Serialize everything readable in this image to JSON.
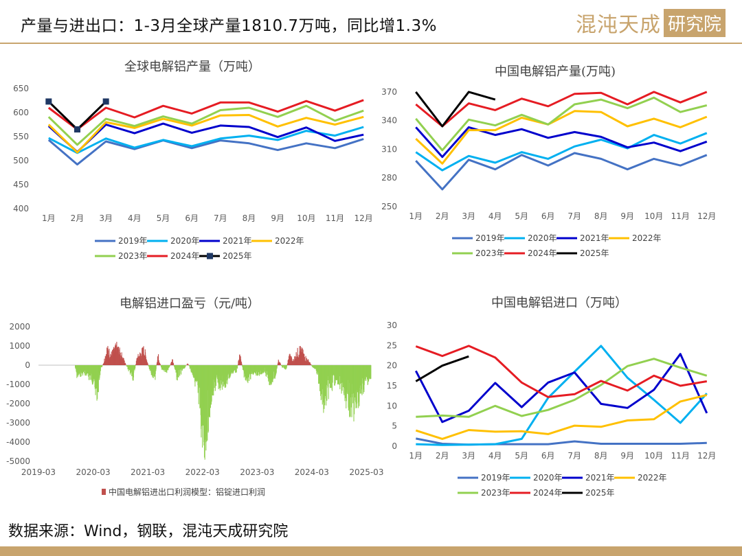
{
  "header": {
    "title": "产量与进出口：1-3月全球产量1810.7万吨，同比增1.3%",
    "logo_text": "混沌天成",
    "logo_box_text": "研究院"
  },
  "footer": {
    "source": "数据来源：Wind，钢联，混沌天成研究院"
  },
  "colors": {
    "2019": "#4472c4",
    "2020": "#00b0f0",
    "2021": "#0000cc",
    "2022": "#ffc000",
    "2023": "#92d050",
    "2024": "#e51c23",
    "2025": "#000000",
    "profit_pos": "#c0504d",
    "profit_neg": "#92d050",
    "brand": "#c8a46d"
  },
  "chart_data": [
    {
      "id": "global",
      "type": "line",
      "title": "全球电解铝产量（万吨）",
      "categories": [
        "1月",
        "2月",
        "3月",
        "4月",
        "5月",
        "6月",
        "7月",
        "8月",
        "9月",
        "10月",
        "11月",
        "12月"
      ],
      "ylim": [
        400,
        650
      ],
      "yticks": [
        400,
        450,
        500,
        550,
        600,
        650
      ],
      "series": [
        {
          "name": "2019年",
          "color": "2019",
          "values": [
            543,
            492,
            540,
            524,
            542,
            526,
            542,
            536,
            522,
            536,
            526,
            545
          ]
        },
        {
          "name": "2020年",
          "color": "2020",
          "values": [
            547,
            516,
            546,
            527,
            543,
            530,
            546,
            552,
            543,
            562,
            552,
            570
          ]
        },
        {
          "name": "2021年",
          "color": "2021",
          "values": [
            572,
            518,
            575,
            557,
            577,
            558,
            573,
            570,
            549,
            569,
            541,
            554
          ]
        },
        {
          "name": "2022年",
          "color": "2022",
          "values": [
            575,
            517,
            580,
            568,
            587,
            573,
            594,
            595,
            571,
            589,
            575,
            591
          ]
        },
        {
          "name": "2023年",
          "color": "2023",
          "values": [
            591,
            533,
            587,
            572,
            592,
            577,
            605,
            610,
            591,
            614,
            583,
            604
          ]
        },
        {
          "name": "2024年",
          "color": "2024",
          "values": [
            610,
            565,
            610,
            590,
            614,
            598,
            621,
            621,
            602,
            624,
            604,
            626
          ]
        },
        {
          "name": "2025年",
          "color": "2025",
          "values": [
            623,
            565,
            623,
            null,
            null,
            null,
            null,
            null,
            null,
            null,
            null,
            null
          ],
          "markers": true
        }
      ],
      "legend_rows": [
        [
          "2019年",
          "2020年",
          "2021年",
          "2022年"
        ],
        [
          "2023年",
          "2024年",
          "2025年"
        ]
      ]
    },
    {
      "id": "china",
      "type": "line",
      "title": "中国电解铝产量(万吨)",
      "categories": [
        "1月",
        "2月",
        "3月",
        "4月",
        "5月",
        "6月",
        "7月",
        "8月",
        "9月",
        "10月",
        "11月",
        "12月"
      ],
      "ylim": [
        250,
        380
      ],
      "yticks": [
        250,
        280,
        310,
        340,
        370
      ],
      "series": [
        {
          "name": "2019年",
          "color": "2019",
          "values": [
            298,
            268,
            299,
            289,
            304,
            293,
            306,
            300,
            289,
            300,
            293,
            304
          ]
        },
        {
          "name": "2020年",
          "color": "2020",
          "values": [
            307,
            288,
            303,
            296,
            307,
            300,
            313,
            320,
            311,
            325,
            316,
            327
          ]
        },
        {
          "name": "2021年",
          "color": "2021",
          "values": [
            333,
            302,
            333,
            325,
            331,
            322,
            328,
            323,
            312,
            317,
            308,
            318
          ]
        },
        {
          "name": "2022年",
          "color": "2022",
          "values": [
            321,
            295,
            330,
            330,
            343,
            336,
            350,
            349,
            334,
            342,
            333,
            344
          ]
        },
        {
          "name": "2023年",
          "color": "2023",
          "values": [
            342,
            309,
            341,
            335,
            346,
            336,
            357,
            362,
            353,
            364,
            349,
            356
          ]
        },
        {
          "name": "2024年",
          "color": "2024",
          "values": [
            357,
            334,
            358,
            351,
            363,
            355,
            368,
            369,
            357,
            370,
            359,
            370
          ]
        },
        {
          "name": "2025年",
          "color": "2025",
          "values": [
            370,
            334,
            370,
            362,
            null,
            null,
            null,
            null,
            null,
            null,
            null,
            null
          ]
        }
      ],
      "legend_rows": [
        [
          "2019年",
          "2020年",
          "2021年",
          "2022年"
        ],
        [
          "2023年",
          "2024年",
          "2025年"
        ]
      ]
    },
    {
      "id": "profit",
      "type": "bar",
      "title": "电解铝进口盈亏（元/吨）",
      "xlim": [
        2019.167,
        2025.25
      ],
      "xticks": [
        {
          "v": 2019.167,
          "label": "2019-03"
        },
        {
          "v": 2020.167,
          "label": "2020-03"
        },
        {
          "v": 2021.167,
          "label": "2021-03"
        },
        {
          "v": 2022.167,
          "label": "2022-03"
        },
        {
          "v": 2023.167,
          "label": "2023-03"
        },
        {
          "v": 2024.167,
          "label": "2024-03"
        },
        {
          "v": 2025.167,
          "label": "2025-03"
        }
      ],
      "ylim": [
        -5000,
        2000
      ],
      "yticks": [
        -5000,
        -4000,
        -3000,
        -2000,
        -1000,
        0,
        1000,
        2000
      ],
      "series_name": "中国电解铝进出口利润模型：铝锭进口利润",
      "anchors": [
        [
          2019.167,
          0
        ],
        [
          2019.83,
          0
        ],
        [
          2019.87,
          -600
        ],
        [
          2020.0,
          -400
        ],
        [
          2020.15,
          -800
        ],
        [
          2020.25,
          -1600
        ],
        [
          2020.3,
          -300
        ],
        [
          2020.36,
          150
        ],
        [
          2020.42,
          900
        ],
        [
          2020.5,
          600
        ],
        [
          2020.6,
          1000
        ],
        [
          2020.7,
          500
        ],
        [
          2020.8,
          -200
        ],
        [
          2020.9,
          -700
        ],
        [
          2020.97,
          400
        ],
        [
          2021.1,
          900
        ],
        [
          2021.2,
          -300
        ],
        [
          2021.3,
          -700
        ],
        [
          2021.35,
          600
        ],
        [
          2021.42,
          -200
        ],
        [
          2021.52,
          -400
        ],
        [
          2021.62,
          300
        ],
        [
          2021.7,
          -700
        ],
        [
          2021.8,
          -300
        ],
        [
          2021.9,
          100
        ],
        [
          2021.96,
          -300
        ],
        [
          2022.02,
          -700
        ],
        [
          2022.08,
          -1700
        ],
        [
          2022.14,
          -3000
        ],
        [
          2022.2,
          -4600
        ],
        [
          2022.26,
          -3100
        ],
        [
          2022.33,
          -1800
        ],
        [
          2022.42,
          -1000
        ],
        [
          2022.52,
          -1100
        ],
        [
          2022.62,
          -900
        ],
        [
          2022.7,
          -400
        ],
        [
          2022.8,
          -300
        ],
        [
          2022.85,
          700
        ],
        [
          2022.92,
          -500
        ],
        [
          2023.0,
          -800
        ],
        [
          2023.1,
          -400
        ],
        [
          2023.2,
          -500
        ],
        [
          2023.3,
          -300
        ],
        [
          2023.4,
          -900
        ],
        [
          2023.5,
          -600
        ],
        [
          2023.56,
          300
        ],
        [
          2023.62,
          -100
        ],
        [
          2023.7,
          -200
        ],
        [
          2023.76,
          600
        ],
        [
          2023.82,
          200
        ],
        [
          2023.88,
          600
        ],
        [
          2023.94,
          900
        ],
        [
          2024.0,
          700
        ],
        [
          2024.06,
          400
        ],
        [
          2024.12,
          200
        ],
        [
          2024.18,
          -100
        ],
        [
          2024.24,
          -200
        ],
        [
          2024.3,
          -900
        ],
        [
          2024.38,
          -2200
        ],
        [
          2024.46,
          -1500
        ],
        [
          2024.54,
          -1100
        ],
        [
          2024.62,
          -700
        ],
        [
          2024.72,
          -1300
        ],
        [
          2024.8,
          -1900
        ],
        [
          2024.88,
          -2300
        ],
        [
          2024.96,
          -2600
        ],
        [
          2025.0,
          -1900
        ],
        [
          2025.08,
          -1500
        ],
        [
          2025.14,
          -1000
        ],
        [
          2025.2,
          -800
        ],
        [
          2025.25,
          -900
        ]
      ]
    },
    {
      "id": "imports",
      "type": "line",
      "title": "中国电解铝进口（万吨）",
      "categories": [
        "1月",
        "2月",
        "3月",
        "4月",
        "5月",
        "6月",
        "7月",
        "8月",
        "9月",
        "10月",
        "11月",
        "12月"
      ],
      "ylim": [
        0,
        30
      ],
      "yticks": [
        0,
        5,
        10,
        15,
        20,
        25,
        30
      ],
      "series": [
        {
          "name": "2019年",
          "color": "2019",
          "values": [
            1.9,
            0.6,
            0.4,
            0.5,
            0.5,
            0.5,
            1.2,
            0.6,
            0.6,
            0.6,
            0.6,
            0.8
          ]
        },
        {
          "name": "2020年",
          "color": "2020",
          "values": [
            0.5,
            0.3,
            0.4,
            0.5,
            1.8,
            12.0,
            18.5,
            24.9,
            17.0,
            11.5,
            5.8,
            13.1
          ]
        },
        {
          "name": "2021年",
          "color": "2021",
          "values": [
            18.7,
            6.0,
            8.8,
            15.7,
            9.7,
            15.8,
            18.3,
            10.5,
            9.5,
            14.0,
            22.9,
            8.2
          ]
        },
        {
          "name": "2022年",
          "color": "2022",
          "values": [
            3.9,
            1.8,
            4.0,
            3.6,
            3.7,
            3.0,
            5.1,
            4.8,
            6.4,
            6.7,
            11.1,
            12.7
          ]
        },
        {
          "name": "2023年",
          "color": "2023",
          "values": [
            7.3,
            7.6,
            7.3,
            10.0,
            7.5,
            9.0,
            11.5,
            15.2,
            19.9,
            21.7,
            19.5,
            17.5
          ]
        },
        {
          "name": "2024年",
          "color": "2024",
          "values": [
            24.8,
            22.4,
            24.9,
            22.0,
            15.8,
            12.2,
            12.9,
            16.2,
            13.8,
            17.5,
            15.0,
            16.1
          ]
        },
        {
          "name": "2025年",
          "color": "2025",
          "values": [
            16.1,
            20.0,
            22.3,
            null,
            null,
            null,
            null,
            null,
            null,
            null,
            null,
            null
          ]
        }
      ],
      "legend_rows": [
        [
          "2019年",
          "2020年",
          "2021年",
          "2022年"
        ],
        [
          "2023年",
          "2024年",
          "2025年"
        ]
      ]
    }
  ]
}
